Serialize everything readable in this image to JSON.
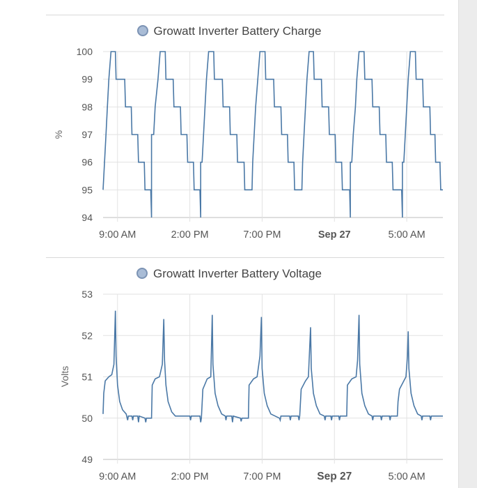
{
  "chart_data": [
    {
      "type": "line",
      "title": "Growatt Inverter Battery Charge",
      "ylabel": "%",
      "ylim": [
        94,
        100
      ],
      "yticks": [
        "94",
        "95",
        "96",
        "97",
        "98",
        "99",
        "100"
      ],
      "xlim": [
        8.0,
        31.5
      ],
      "xticks": [
        {
          "label": "9:00 AM",
          "x": 9,
          "bold": false
        },
        {
          "label": "2:00 PM",
          "x": 14,
          "bold": false
        },
        {
          "label": "7:00 PM",
          "x": 19,
          "bold": false
        },
        {
          "label": "Sep 27",
          "x": 24,
          "bold": true
        },
        {
          "label": "5:00 AM",
          "x": 29,
          "bold": false
        }
      ],
      "series": [
        {
          "name": "Growatt Inverter Battery Charge",
          "color": "#4a78a6",
          "points": [
            [
              8.0,
              95
            ],
            [
              8.1,
              96
            ],
            [
              8.2,
              97
            ],
            [
              8.3,
              98
            ],
            [
              8.4,
              99
            ],
            [
              8.55,
              100
            ],
            [
              8.85,
              100
            ],
            [
              8.9,
              99
            ],
            [
              9.5,
              99
            ],
            [
              9.55,
              98
            ],
            [
              9.95,
              98
            ],
            [
              10.0,
              97
            ],
            [
              10.4,
              97
            ],
            [
              10.45,
              96
            ],
            [
              10.85,
              96
            ],
            [
              10.9,
              95
            ],
            [
              11.3,
              95
            ],
            [
              11.35,
              94
            ],
            [
              11.35,
              97
            ],
            [
              11.5,
              97
            ],
            [
              11.6,
              98
            ],
            [
              11.8,
              99
            ],
            [
              11.95,
              100
            ],
            [
              12.3,
              100
            ],
            [
              12.35,
              99
            ],
            [
              12.85,
              99
            ],
            [
              12.9,
              98
            ],
            [
              13.35,
              98
            ],
            [
              13.4,
              97
            ],
            [
              13.8,
              97
            ],
            [
              13.85,
              96
            ],
            [
              14.25,
              96
            ],
            [
              14.3,
              95
            ],
            [
              14.7,
              95
            ],
            [
              14.75,
              94
            ],
            [
              14.75,
              96
            ],
            [
              14.85,
              96
            ],
            [
              14.95,
              97
            ],
            [
              15.05,
              98
            ],
            [
              15.15,
              99
            ],
            [
              15.3,
              100
            ],
            [
              15.65,
              100
            ],
            [
              15.7,
              99
            ],
            [
              16.25,
              99
            ],
            [
              16.3,
              98
            ],
            [
              16.75,
              98
            ],
            [
              16.8,
              97
            ],
            [
              17.25,
              97
            ],
            [
              17.3,
              96
            ],
            [
              17.75,
              96
            ],
            [
              17.8,
              95
            ],
            [
              18.3,
              95
            ],
            [
              18.35,
              96
            ],
            [
              18.45,
              97
            ],
            [
              18.55,
              98
            ],
            [
              18.7,
              99
            ],
            [
              18.85,
              100
            ],
            [
              19.2,
              100
            ],
            [
              19.25,
              99
            ],
            [
              19.8,
              99
            ],
            [
              19.85,
              98
            ],
            [
              20.3,
              98
            ],
            [
              20.35,
              97
            ],
            [
              20.75,
              97
            ],
            [
              20.8,
              96
            ],
            [
              21.2,
              96
            ],
            [
              21.25,
              95
            ],
            [
              21.75,
              95
            ],
            [
              21.8,
              96
            ],
            [
              21.9,
              97
            ],
            [
              22.0,
              98
            ],
            [
              22.1,
              99
            ],
            [
              22.25,
              100
            ],
            [
              22.55,
              100
            ],
            [
              22.6,
              99
            ],
            [
              23.1,
              99
            ],
            [
              23.15,
              98
            ],
            [
              23.6,
              98
            ],
            [
              23.65,
              97
            ],
            [
              24.05,
              97
            ],
            [
              24.1,
              96
            ],
            [
              24.5,
              96
            ],
            [
              24.55,
              95
            ],
            [
              25.05,
              95
            ],
            [
              25.1,
              94
            ],
            [
              25.1,
              96
            ],
            [
              25.2,
              96
            ],
            [
              25.3,
              97
            ],
            [
              25.45,
              98
            ],
            [
              25.55,
              99
            ],
            [
              25.7,
              100
            ],
            [
              26.05,
              100
            ],
            [
              26.1,
              99
            ],
            [
              26.6,
              99
            ],
            [
              26.65,
              98
            ],
            [
              27.1,
              98
            ],
            [
              27.15,
              97
            ],
            [
              27.55,
              97
            ],
            [
              27.6,
              96
            ],
            [
              28.0,
              96
            ],
            [
              28.05,
              95
            ],
            [
              28.65,
              95
            ],
            [
              28.7,
              94
            ],
            [
              28.7,
              96
            ],
            [
              28.8,
              96
            ],
            [
              28.9,
              97
            ],
            [
              29.0,
              98
            ],
            [
              29.1,
              99
            ],
            [
              29.25,
              100
            ],
            [
              29.6,
              100
            ],
            [
              29.65,
              99
            ],
            [
              30.1,
              99
            ],
            [
              30.15,
              98
            ],
            [
              30.6,
              98
            ],
            [
              30.65,
              97
            ],
            [
              30.95,
              97
            ],
            [
              31.0,
              96
            ],
            [
              31.3,
              96
            ],
            [
              31.35,
              95
            ],
            [
              31.5,
              95
            ]
          ]
        }
      ]
    },
    {
      "type": "line",
      "title": "Growatt Inverter Battery Voltage",
      "ylabel": "Volts",
      "ylim": [
        49,
        53
      ],
      "yticks": [
        "49",
        "50",
        "51",
        "52",
        "53"
      ],
      "xlim": [
        8.0,
        31.5
      ],
      "xticks": [
        {
          "label": "9:00 AM",
          "x": 9,
          "bold": false
        },
        {
          "label": "2:00 PM",
          "x": 14,
          "bold": false
        },
        {
          "label": "7:00 PM",
          "x": 19,
          "bold": false
        },
        {
          "label": "Sep 27",
          "x": 24,
          "bold": true
        },
        {
          "label": "5:00 AM",
          "x": 29,
          "bold": false
        }
      ],
      "series": [
        {
          "name": "Growatt Inverter Battery Voltage",
          "color": "#4a78a6",
          "points": [
            [
              8.0,
              50.1
            ],
            [
              8.05,
              50.6
            ],
            [
              8.15,
              50.9
            ],
            [
              8.4,
              51.0
            ],
            [
              8.6,
              51.05
            ],
            [
              8.75,
              51.3
            ],
            [
              8.85,
              52.6
            ],
            [
              8.9,
              51.5
            ],
            [
              9.0,
              50.8
            ],
            [
              9.15,
              50.4
            ],
            [
              9.35,
              50.2
            ],
            [
              9.6,
              50.1
            ],
            [
              9.7,
              49.95
            ],
            [
              9.75,
              50.05
            ],
            [
              10.0,
              50.05
            ],
            [
              10.05,
              49.95
            ],
            [
              10.1,
              50.05
            ],
            [
              10.4,
              50.05
            ],
            [
              10.45,
              49.9
            ],
            [
              10.5,
              50.05
            ],
            [
              10.9,
              50.0
            ],
            [
              10.95,
              49.9
            ],
            [
              11.0,
              50.0
            ],
            [
              11.35,
              50.0
            ],
            [
              11.4,
              50.8
            ],
            [
              11.6,
              50.95
            ],
            [
              11.9,
              51.0
            ],
            [
              12.1,
              51.3
            ],
            [
              12.2,
              52.4
            ],
            [
              12.25,
              51.4
            ],
            [
              12.35,
              50.8
            ],
            [
              12.5,
              50.4
            ],
            [
              12.75,
              50.15
            ],
            [
              13.0,
              50.05
            ],
            [
              13.5,
              50.05
            ],
            [
              14.0,
              50.05
            ],
            [
              14.05,
              49.95
            ],
            [
              14.1,
              50.05
            ],
            [
              14.7,
              50.05
            ],
            [
              14.75,
              49.9
            ],
            [
              14.8,
              50.0
            ],
            [
              14.9,
              50.7
            ],
            [
              15.2,
              50.95
            ],
            [
              15.45,
              51.0
            ],
            [
              15.55,
              52.5
            ],
            [
              15.6,
              51.3
            ],
            [
              15.75,
              50.6
            ],
            [
              15.95,
              50.3
            ],
            [
              16.2,
              50.1
            ],
            [
              16.45,
              50.05
            ],
            [
              16.5,
              49.95
            ],
            [
              16.55,
              50.05
            ],
            [
              16.9,
              50.05
            ],
            [
              16.95,
              49.9
            ],
            [
              17.0,
              50.05
            ],
            [
              17.5,
              50.0
            ],
            [
              17.55,
              49.92
            ],
            [
              17.6,
              50.0
            ],
            [
              18.05,
              50.0
            ],
            [
              18.1,
              50.8
            ],
            [
              18.4,
              50.95
            ],
            [
              18.65,
              51.0
            ],
            [
              18.85,
              51.5
            ],
            [
              18.95,
              52.45
            ],
            [
              19.0,
              51.2
            ],
            [
              19.15,
              50.6
            ],
            [
              19.35,
              50.3
            ],
            [
              19.6,
              50.1
            ],
            [
              19.9,
              50.05
            ],
            [
              20.2,
              50.0
            ],
            [
              20.25,
              49.95
            ],
            [
              20.3,
              50.05
            ],
            [
              20.9,
              50.05
            ],
            [
              20.95,
              49.95
            ],
            [
              21.0,
              50.05
            ],
            [
              21.5,
              50.05
            ],
            [
              21.55,
              49.95
            ],
            [
              21.6,
              50.05
            ],
            [
              21.7,
              50.7
            ],
            [
              22.0,
              50.9
            ],
            [
              22.2,
              51.0
            ],
            [
              22.35,
              52.2
            ],
            [
              22.4,
              51.2
            ],
            [
              22.55,
              50.6
            ],
            [
              22.75,
              50.3
            ],
            [
              23.0,
              50.1
            ],
            [
              23.3,
              50.05
            ],
            [
              23.35,
              49.95
            ],
            [
              23.4,
              50.05
            ],
            [
              23.75,
              50.05
            ],
            [
              23.8,
              49.95
            ],
            [
              23.85,
              50.05
            ],
            [
              24.3,
              50.05
            ],
            [
              24.35,
              49.95
            ],
            [
              24.4,
              50.05
            ],
            [
              24.85,
              50.05
            ],
            [
              24.9,
              50.8
            ],
            [
              25.2,
              50.95
            ],
            [
              25.5,
              51.0
            ],
            [
              25.6,
              51.4
            ],
            [
              25.7,
              52.5
            ],
            [
              25.75,
              51.3
            ],
            [
              25.9,
              50.6
            ],
            [
              26.1,
              50.3
            ],
            [
              26.35,
              50.1
            ],
            [
              26.6,
              50.05
            ],
            [
              26.65,
              49.95
            ],
            [
              26.7,
              50.05
            ],
            [
              27.2,
              50.05
            ],
            [
              27.25,
              49.95
            ],
            [
              27.3,
              50.05
            ],
            [
              27.8,
              50.05
            ],
            [
              27.85,
              49.95
            ],
            [
              27.9,
              50.05
            ],
            [
              28.35,
              50.05
            ],
            [
              28.4,
              50.4
            ],
            [
              28.5,
              50.7
            ],
            [
              28.8,
              50.9
            ],
            [
              28.95,
              51.0
            ],
            [
              29.05,
              51.5
            ],
            [
              29.1,
              52.1
            ],
            [
              29.15,
              51.2
            ],
            [
              29.3,
              50.6
            ],
            [
              29.5,
              50.3
            ],
            [
              29.75,
              50.1
            ],
            [
              30.0,
              50.05
            ],
            [
              30.05,
              49.95
            ],
            [
              30.1,
              50.05
            ],
            [
              30.6,
              50.05
            ],
            [
              30.65,
              49.95
            ],
            [
              30.7,
              50.05
            ],
            [
              31.5,
              50.05
            ]
          ]
        }
      ]
    }
  ]
}
